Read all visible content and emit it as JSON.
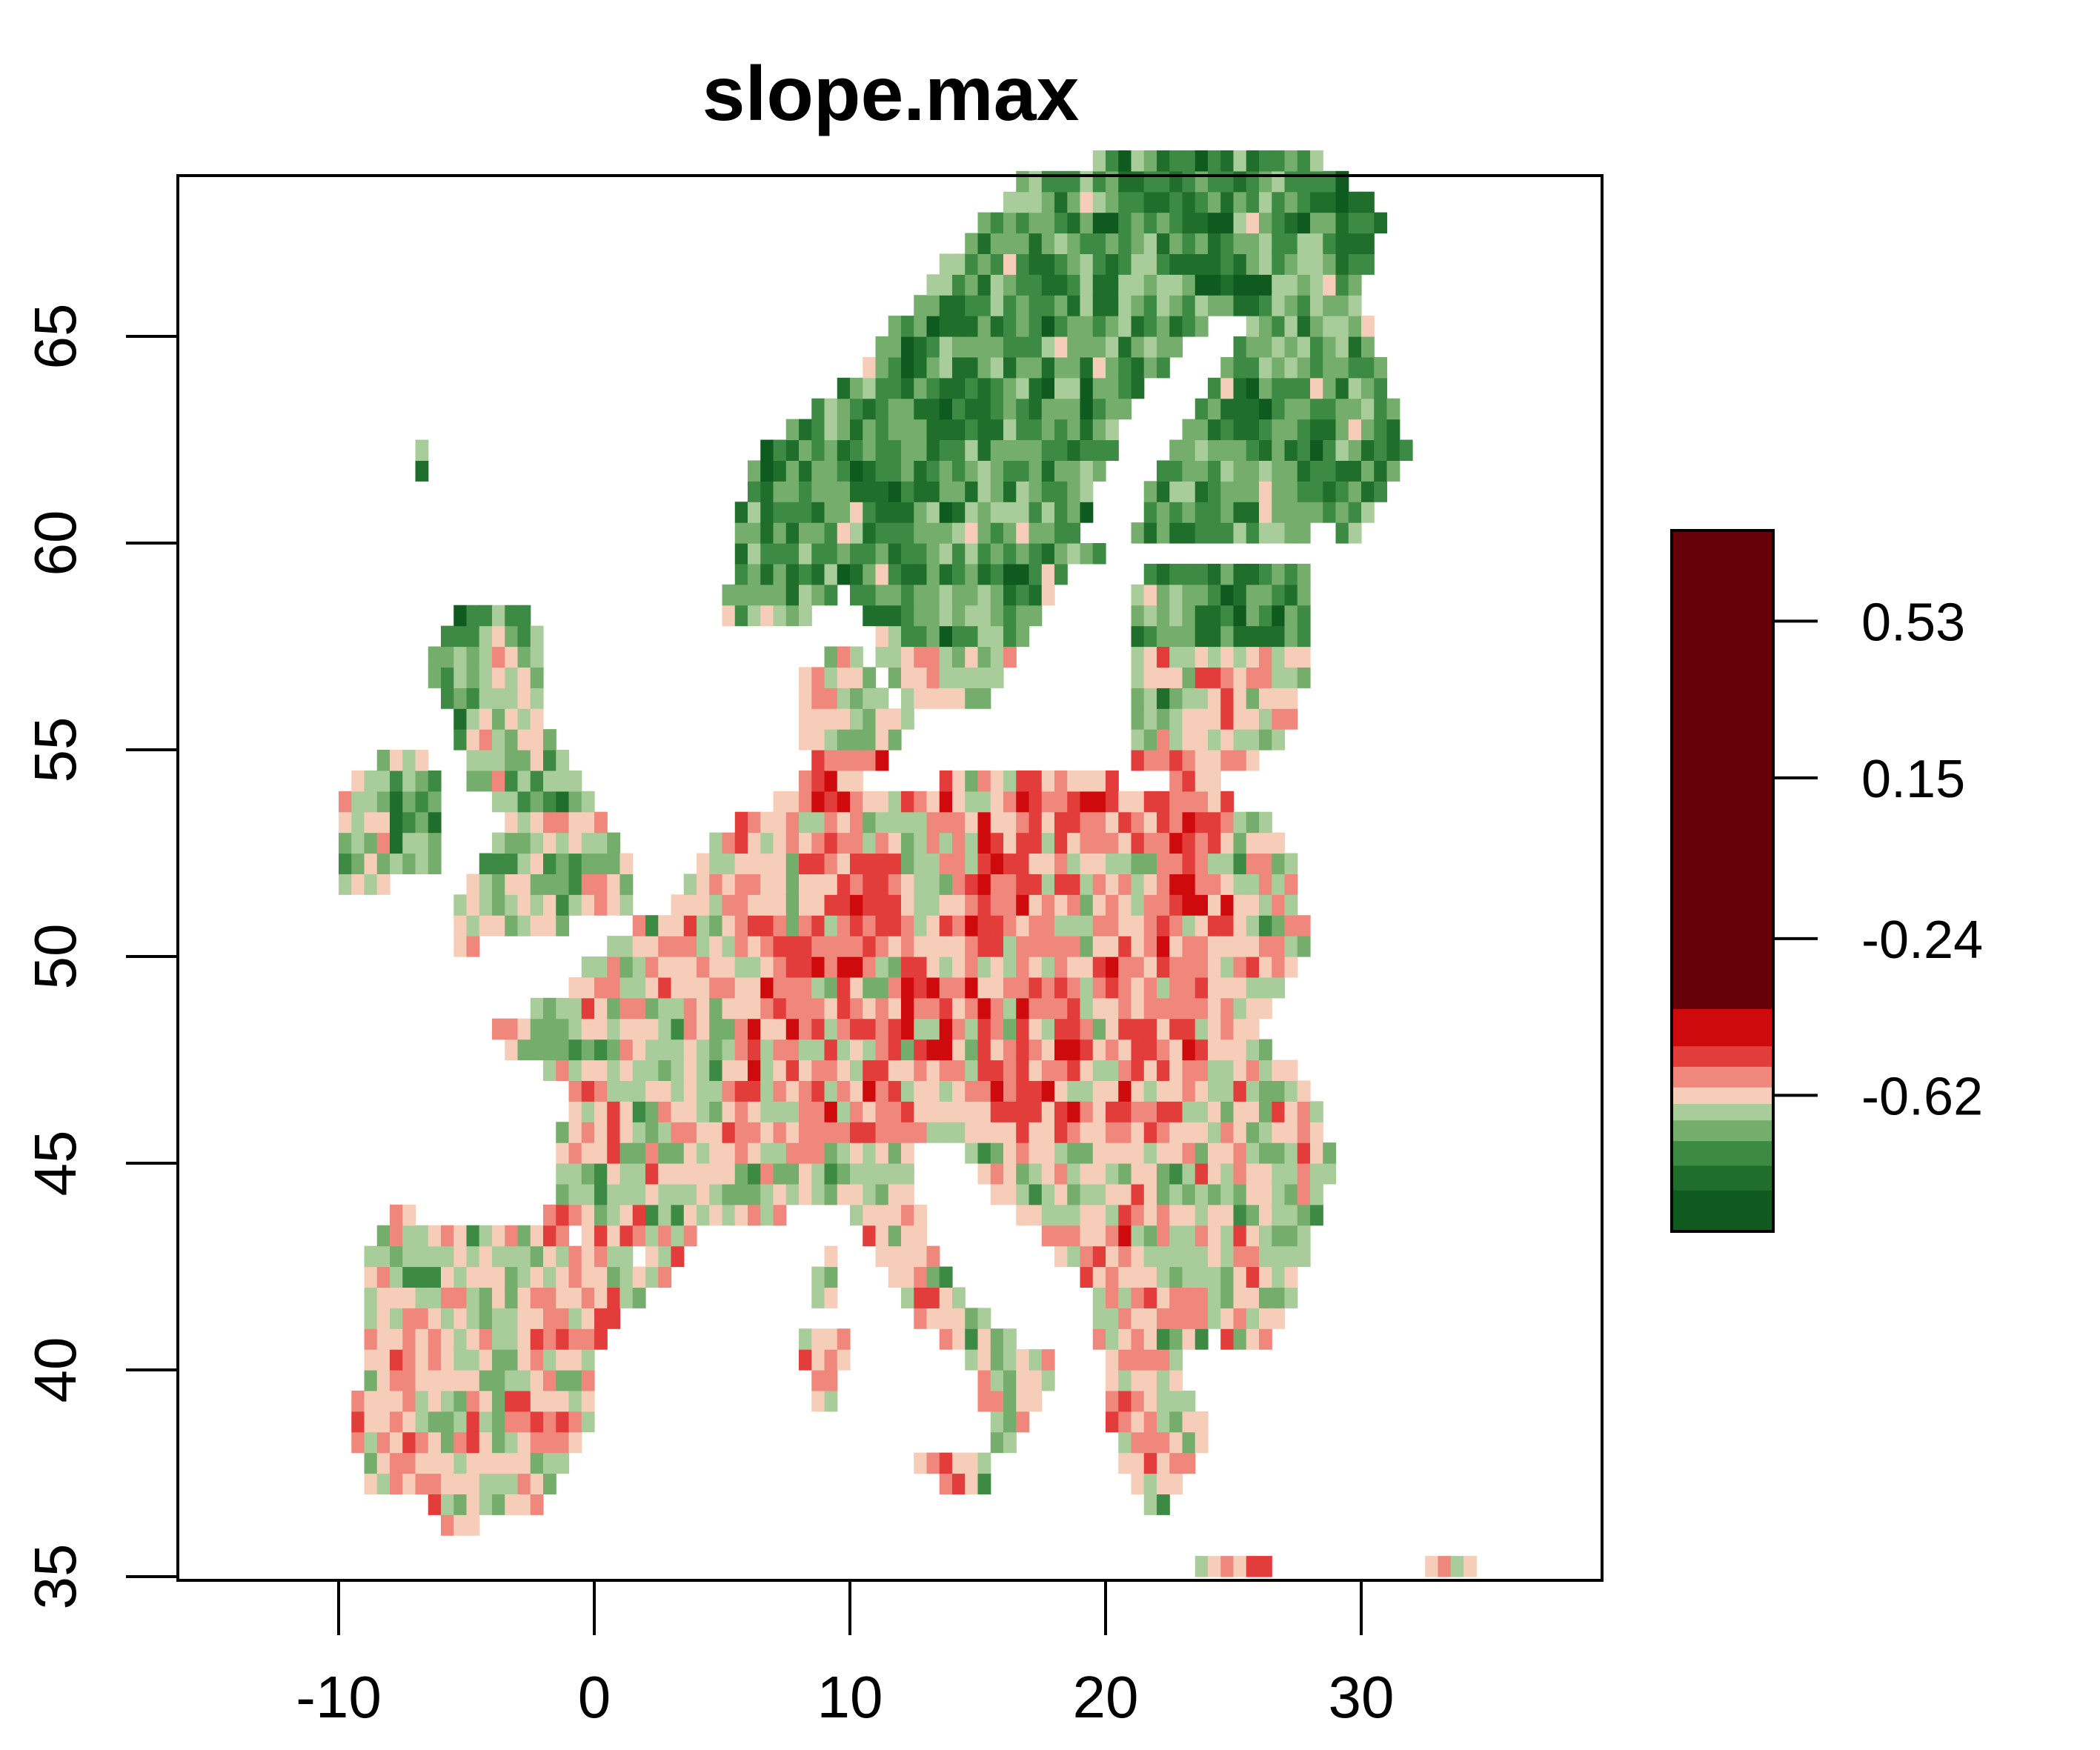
{
  "chart_data": {
    "type": "heatmap",
    "title": "slope.max",
    "xlabel": "",
    "ylabel": "",
    "xlim": [
      -16,
      40
    ],
    "ylim": [
      35,
      69
    ],
    "x_ticks": [
      {
        "value": -10,
        "label": "-10"
      },
      {
        "value": 0,
        "label": "0"
      },
      {
        "value": 10,
        "label": "10"
      },
      {
        "value": 20,
        "label": "20"
      },
      {
        "value": 30,
        "label": "30"
      }
    ],
    "y_ticks": [
      {
        "value": 35,
        "label": "35"
      },
      {
        "value": 40,
        "label": "40"
      },
      {
        "value": 45,
        "label": "45"
      },
      {
        "value": 50,
        "label": "50"
      },
      {
        "value": 55,
        "label": "55"
      },
      {
        "value": 60,
        "label": "60"
      },
      {
        "value": 65,
        "label": "65"
      }
    ],
    "legend": {
      "placement": "right",
      "range": [
        -0.95,
        0.75
      ],
      "ticks": [
        {
          "value": 0.53,
          "label": "0.53"
        },
        {
          "value": 0.15,
          "label": "0.15"
        },
        {
          "value": -0.24,
          "label": "-0.24"
        },
        {
          "value": -0.62,
          "label": "-0.62"
        }
      ],
      "color_bands": [
        {
          "from": -0.95,
          "to": -0.85,
          "color": "#0f5a1f"
        },
        {
          "from": -0.85,
          "to": -0.79,
          "color": "#1f6e2b"
        },
        {
          "from": -0.79,
          "to": -0.73,
          "color": "#3d8a45"
        },
        {
          "from": -0.73,
          "to": -0.68,
          "color": "#74ad6c"
        },
        {
          "from": -0.68,
          "to": -0.64,
          "color": "#a8cd9a"
        },
        {
          "from": -0.64,
          "to": -0.6,
          "color": "#f6cdb9"
        },
        {
          "from": -0.6,
          "to": -0.55,
          "color": "#f0877c"
        },
        {
          "from": -0.55,
          "to": -0.5,
          "color": "#e23c3b"
        },
        {
          "from": -0.5,
          "to": -0.41,
          "color": "#cf0a0d"
        },
        {
          "from": -0.41,
          "to": 0.75,
          "color": "#680009"
        }
      ]
    }
  }
}
